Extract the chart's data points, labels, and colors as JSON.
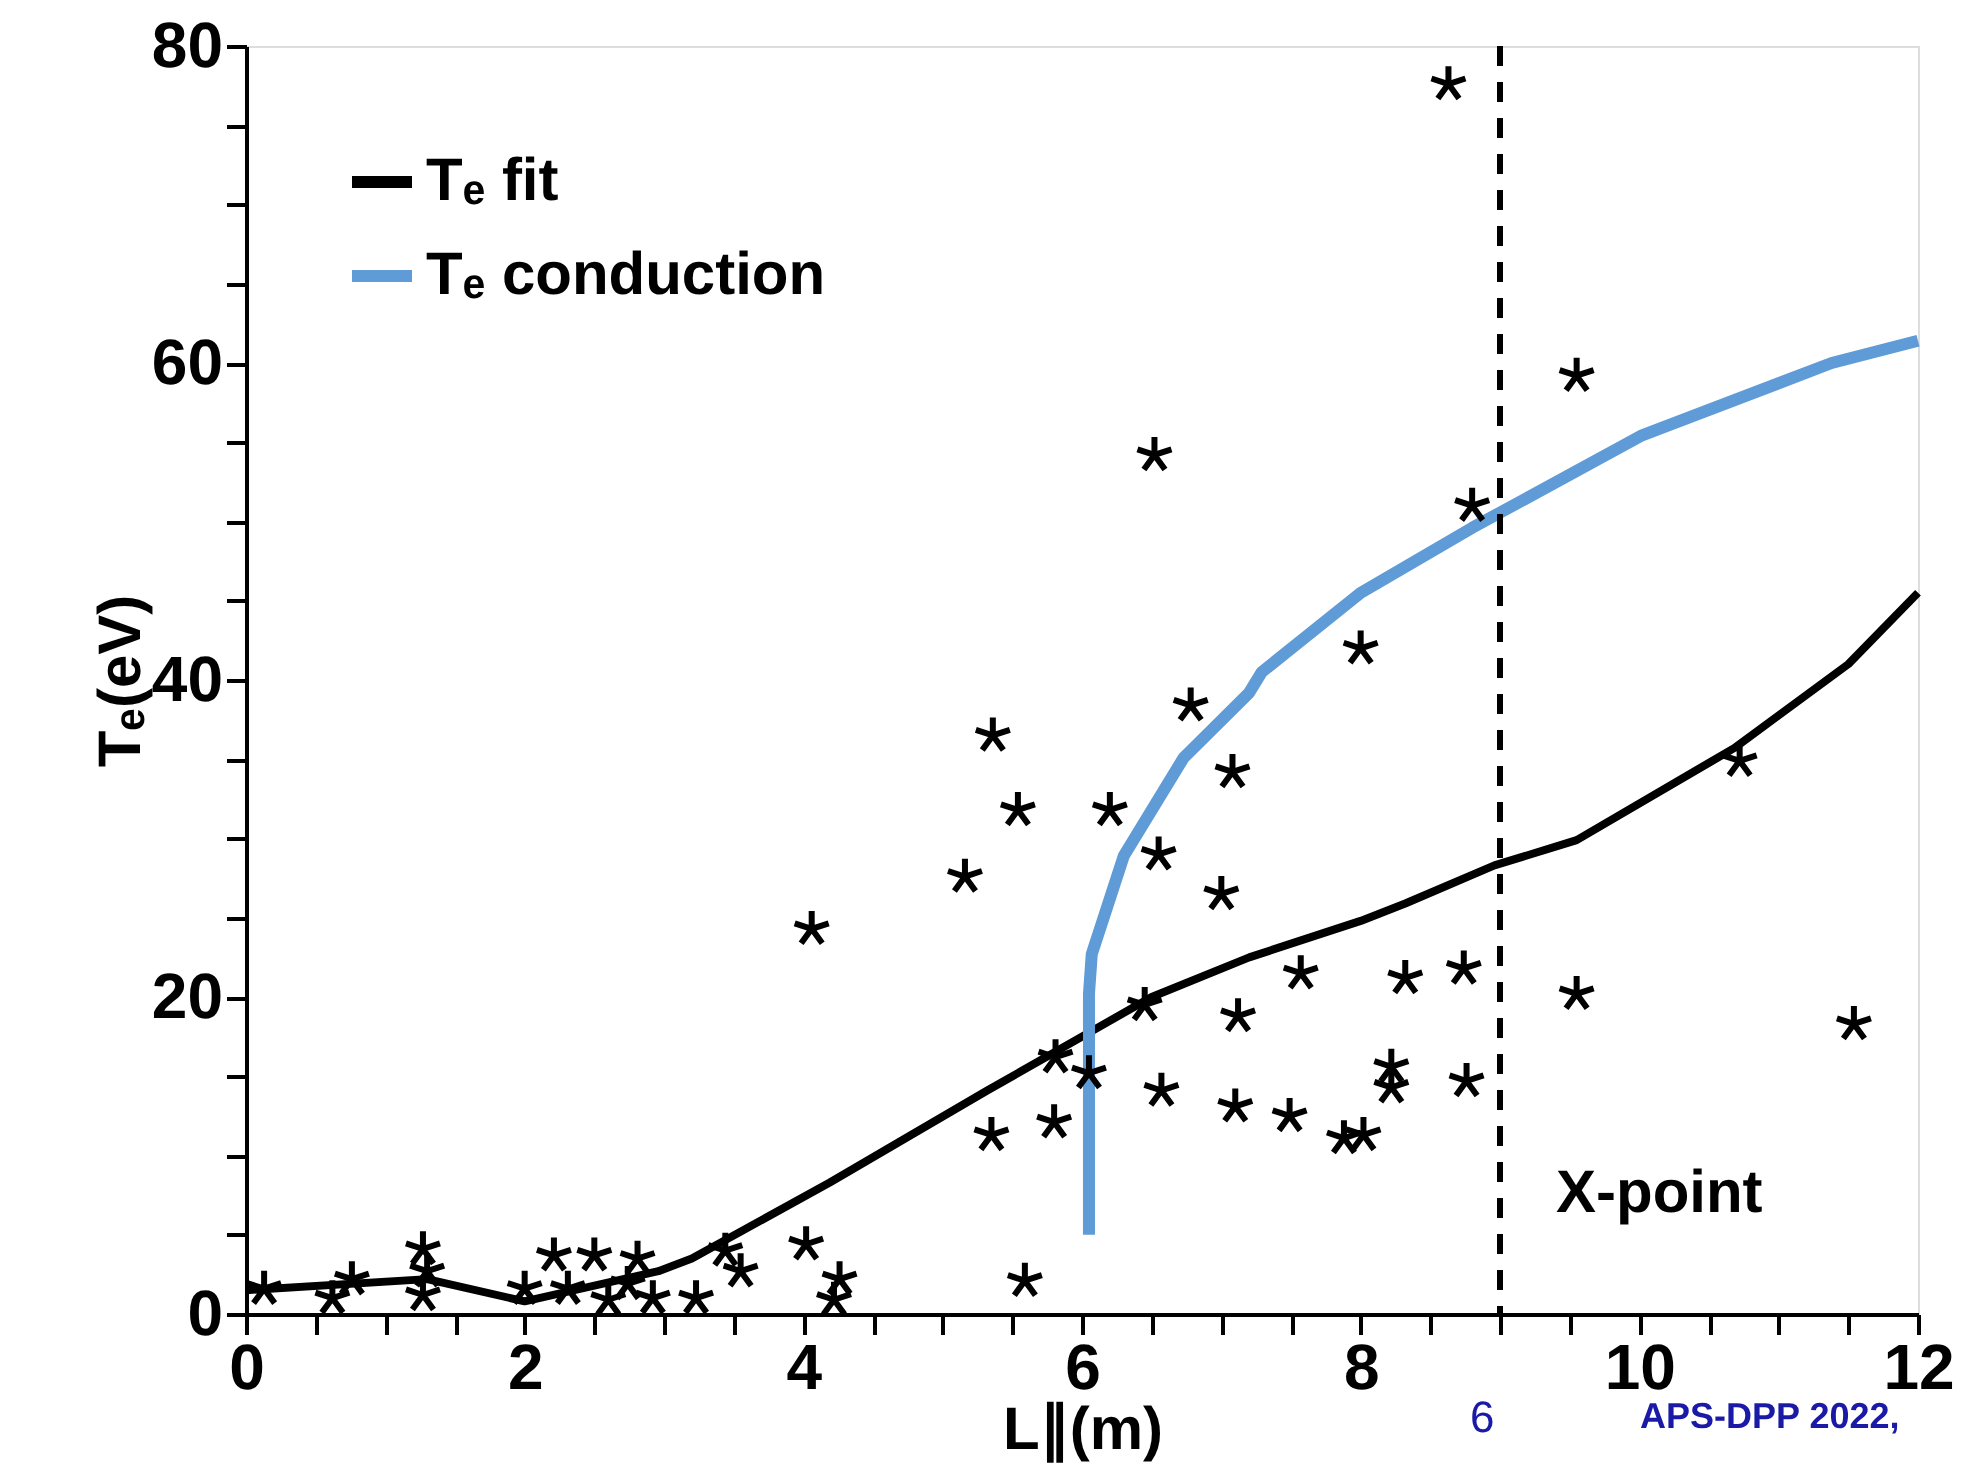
{
  "chart_data": {
    "type": "scatter",
    "xlabel": "L∥(m)",
    "ylabel": "Tₑ(eV)",
    "xlim": [
      0,
      12
    ],
    "ylim": [
      0,
      80
    ],
    "xticks": [
      0,
      {
        "value": 0.5,
        "label": null
      },
      {
        "value": 1,
        "label": null
      },
      {
        "value": 1.5,
        "label": null
      },
      2,
      {
        "value": 2.5,
        "label": null
      },
      {
        "value": 3,
        "label": null
      },
      {
        "value": 3.5,
        "label": null
      },
      4,
      {
        "value": 4.5,
        "label": null
      },
      {
        "value": 5,
        "label": null
      },
      {
        "value": 5.5,
        "label": null
      },
      6,
      {
        "value": 6.5,
        "label": null
      },
      {
        "value": 7,
        "label": null
      },
      {
        "value": 7.5,
        "label": null
      },
      8,
      {
        "value": 8.5,
        "label": null
      },
      {
        "value": 9,
        "label": null
      },
      {
        "value": 9.5,
        "label": null
      },
      10,
      {
        "value": 10.5,
        "label": null
      },
      {
        "value": 11,
        "label": null
      },
      {
        "value": 11.5,
        "label": null
      },
      12
    ],
    "yticks": [
      0,
      {
        "value": 5,
        "label": null
      },
      {
        "value": 10,
        "label": null
      },
      {
        "value": 15,
        "label": null
      },
      20,
      {
        "value": 25,
        "label": null
      },
      {
        "value": 30,
        "label": null
      },
      {
        "value": 35,
        "label": null
      },
      40,
      {
        "value": 45,
        "label": null
      },
      {
        "value": 50,
        "label": null
      },
      {
        "value": 55,
        "label": null
      },
      60,
      {
        "value": 65,
        "label": null
      },
      {
        "value": 70,
        "label": null
      },
      {
        "value": 75,
        "label": null
      },
      80
    ],
    "grid": false,
    "legend": "top left",
    "series": [
      {
        "marker": "cross",
        "color": "#000000",
        "x": [
          8.63,
          9.55,
          6.52,
          8.8,
          8.0,
          6.78,
          7.08,
          5.36,
          5.54,
          5.16,
          6.2,
          6.55,
          7.0,
          4.06,
          10.72,
          7.57,
          8.32,
          8.74,
          9.55,
          11.54,
          6.45,
          7.12,
          5.81,
          6.05,
          6.57,
          7.1,
          7.49,
          7.88,
          8.02,
          8.22,
          8.22,
          8.76,
          5.35,
          5.8,
          5.59,
          0.13,
          0.76,
          0.62,
          1.27,
          1.3,
          1.27,
          2.0,
          2.21,
          2.5,
          2.31,
          2.81,
          2.74,
          2.92,
          2.6,
          3.23,
          3.44,
          3.55,
          4.02,
          4.26,
          4.22
        ],
        "values": [
          77.6,
          59.2,
          54.2,
          51,
          42,
          38.4,
          34.2,
          36.5,
          31.8,
          27.6,
          31.8,
          29,
          26.5,
          24.3,
          34.9,
          21.5,
          21.2,
          21.8,
          20.2,
          18.3,
          19.5,
          18.8,
          16.2,
          15.2,
          14.1,
          13.1,
          12.5,
          11.1,
          11.3,
          14.3,
          15.6,
          14.7,
          11.3,
          12.1,
          2.1,
          1.6,
          2.2,
          1.0,
          4.1,
          2.7,
          1.2,
          1.6,
          3.7,
          3.7,
          1.6,
          3.5,
          1.9,
          1.0,
          0.9,
          1.0,
          4.0,
          2.7,
          4.4,
          2.2,
          0.9
        ]
      },
      {
        "type": "line",
        "name": "Tₑ fit",
        "color": "#000000",
        "x": [
          0,
          1.3,
          2.0,
          2.96,
          3.2,
          4.19,
          5.32,
          5.8,
          6.5,
          7.2,
          8.0,
          8.32,
          8.96,
          9.55,
          10.68,
          11.5,
          12
        ],
        "values": [
          1.5,
          2.2,
          0.8,
          2.7,
          3.5,
          8.3,
          14.1,
          16.5,
          20,
          22.5,
          24.8,
          25.9,
          28.3,
          29.9,
          35.7,
          41,
          45.5
        ]
      },
      {
        "type": "line",
        "name": "Tₑ conduction",
        "color": "#5f9bd6",
        "x": [
          6.05,
          6.05,
          6.07,
          6.3,
          6.73,
          7.2,
          7.29,
          8.0,
          8.8,
          10.01,
          11.38,
          12
        ],
        "values": [
          5.0,
          20.2,
          22.7,
          28.9,
          35.1,
          39.2,
          40.5,
          45.5,
          49.6,
          55.4,
          60,
          61.4
        ]
      }
    ],
    "ref_lines": [
      {
        "axis": "x",
        "value": 9,
        "label": "X-point",
        "line_style": "dashed",
        "color": "#000000"
      }
    ],
    "annotations": [
      "6",
      "APS-DPP 2022,"
    ]
  }
}
